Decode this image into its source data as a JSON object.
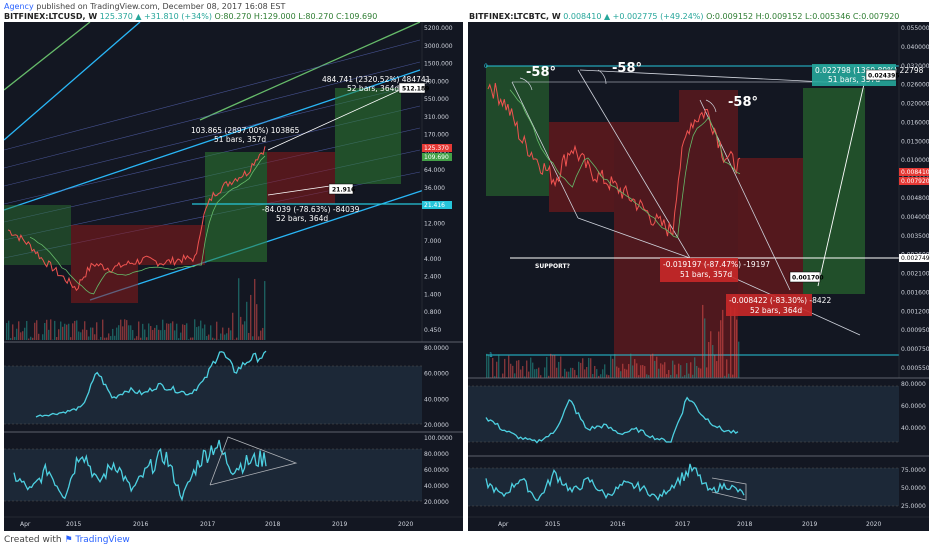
{
  "header": {
    "author": "Agency",
    "published": "published on TradingView.com, December 08, 2017 16:08 EST",
    "left_symbol": "BITFINEX:LTCUSD, W",
    "left_values": "125.370 ▲ +31.810 (+34%)",
    "left_ohlc": "O:80.270 H:129.000 L:80.270 C:109.690",
    "right_symbol": "BITFINEX:LTCBTC, W",
    "right_values": "0.008410 ▲ +0.002775 (+49.24%)",
    "right_ohlc": "O:0.009152 H:0.009152 L:0.005346 C:0.007920"
  },
  "footer": {
    "created_with": "Created with",
    "brand": "TradingView"
  },
  "colors": {
    "background": "#131722",
    "green_box": "#2e7d32",
    "red_box": "#8b1a1a",
    "rsi_line": "#4dd0e1",
    "channel_blue": "#29b6f6",
    "channel_green": "#66bb6a"
  },
  "chart_data": [
    {
      "type": "line",
      "name": "BITFINEX:LTCUSD weekly price (log)",
      "scale": "log",
      "x": [
        2014.3,
        2014.5,
        2014.8,
        2015.0,
        2015.2,
        2015.5,
        2015.7,
        2016.0,
        2016.3,
        2016.6,
        2016.9,
        2017.1,
        2017.3,
        2017.5,
        2017.7,
        2017.9
      ],
      "values": [
        10,
        7,
        4,
        2.5,
        1.6,
        3.5,
        3.0,
        3.5,
        4.0,
        3.6,
        4.0,
        4.2,
        30,
        45,
        60,
        125
      ],
      "y_ticks": [
        "5200.000",
        "3000.000",
        "1500.000",
        "900.000",
        "550.000",
        "310.000",
        "170.000",
        "100.000",
        "64.000",
        "36.000",
        "21.000",
        "12.000",
        "7.000",
        "4.000",
        "2.400",
        "1.400",
        "0.800",
        "0.450"
      ],
      "x_ticks": [
        "Apr",
        "2015",
        "2016",
        "2017",
        "2018",
        "2019",
        "2020"
      ],
      "price_labels": [
        {
          "text": "125.370",
          "value": 125.37,
          "color": "#e53935"
        },
        {
          "text": "109.690",
          "value": 109.69,
          "color": "#43a047"
        },
        {
          "text": "21.416",
          "value": 21.416,
          "color": "#26c6da"
        }
      ],
      "annotations": [
        {
          "text": "484.741 (2320.52%) 484741",
          "sub": "52 bars, 364d"
        },
        {
          "text": "103.865 (2897.00%) 103865",
          "sub": "51 bars, 357d"
        },
        {
          "text": "-84.039 (-78.63%) -84039",
          "sub": "52 bars, 364d"
        }
      ],
      "callouts": [
        "512.189",
        "21.916"
      ]
    },
    {
      "type": "line",
      "name": "LTCUSD RSI",
      "y_ticks": [
        "80.0000",
        "60.0000",
        "40.0000",
        "20.0000"
      ],
      "values": [
        20,
        22,
        25,
        30,
        70,
        40,
        50,
        45,
        55,
        50,
        45,
        60,
        95,
        70,
        85,
        88
      ]
    },
    {
      "type": "line",
      "name": "LTCUSD Stochastic",
      "y_ticks": [
        "100.0000",
        "80.0000",
        "60.0000",
        "40.0000",
        "20.0000"
      ],
      "values": [
        50,
        30,
        60,
        20,
        90,
        40,
        70,
        30,
        60,
        80,
        20,
        70,
        95,
        60,
        70,
        75
      ]
    },
    {
      "type": "line",
      "name": "BITFINEX:LTCBTC weekly price (log)",
      "scale": "log",
      "x": [
        2014.3,
        2014.5,
        2014.8,
        2015.0,
        2015.3,
        2015.5,
        2015.7,
        2016.0,
        2016.3,
        2016.6,
        2016.9,
        2017.1,
        2017.3,
        2017.5,
        2017.7,
        2017.9
      ],
      "values": [
        0.026,
        0.02,
        0.012,
        0.009,
        0.007,
        0.011,
        0.008,
        0.007,
        0.006,
        0.005,
        0.004,
        0.0035,
        0.015,
        0.018,
        0.01,
        0.0084
      ],
      "y_ticks": [
        "0.055000",
        "0.040000",
        "0.032000",
        "0.026000",
        "0.020000",
        "0.016000",
        "0.013000",
        "0.010000",
        "0.006000",
        "0.004800",
        "0.004000",
        "0.003500",
        "0.002600",
        "0.002100",
        "0.001600",
        "0.001200",
        "0.000950",
        "0.000750",
        "0.000550"
      ],
      "x_ticks": [
        "Apr",
        "2015",
        "2016",
        "2017",
        "2018",
        "2019",
        "2020"
      ],
      "price_labels": [
        {
          "text": "0.008410",
          "value": 0.00841,
          "color": "#e53935"
        },
        {
          "text": "0.007920",
          "value": 0.00792,
          "color": "#e53935"
        },
        {
          "text": "0.002749",
          "value": 0.002749,
          "color": "#ffffff"
        }
      ],
      "annotations": [
        {
          "text": "0.022798 (1369.89%) 22798",
          "sub": "51 bars, 357d"
        },
        {
          "text": "-0.019197 (-87.47%) -19197",
          "sub": "51 bars, 357d"
        },
        {
          "text": "-0.008422 (-83.30%) -8422",
          "sub": "52 bars, 364d"
        }
      ],
      "callouts": [
        "0.024395",
        "0.001700"
      ],
      "angles": [
        "-58°",
        "-58°",
        "-58°"
      ],
      "labels": [
        "SUPPORT?",
        "0",
        "1"
      ]
    },
    {
      "type": "line",
      "name": "LTCBTC RSI",
      "y_ticks": [
        "80.0000",
        "60.0000",
        "40.0000"
      ],
      "values": [
        60,
        45,
        35,
        30,
        40,
        80,
        45,
        50,
        40,
        45,
        35,
        30,
        85,
        60,
        45,
        40
      ]
    },
    {
      "type": "line",
      "name": "LTCBTC Stochastic",
      "y_ticks": [
        "75.0000",
        "50.0000",
        "25.0000"
      ],
      "values": [
        60,
        30,
        70,
        20,
        80,
        40,
        65,
        30,
        55,
        50,
        25,
        60,
        90,
        40,
        55,
        35
      ]
    }
  ]
}
